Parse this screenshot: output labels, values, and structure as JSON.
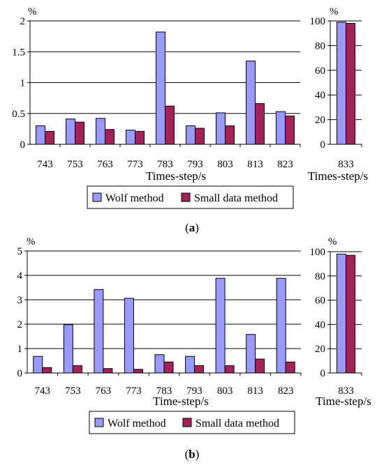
{
  "figure": {
    "captions": [
      "(a)",
      "(b)"
    ]
  },
  "legend": {
    "entries": [
      "Wolf method",
      "Small data method"
    ]
  },
  "colors": {
    "wolf_fill": "#9a99ff",
    "small_fill": "#a3225a",
    "bar_stroke": "#000000",
    "grid": "#000000"
  },
  "chart_data": [
    {
      "type": "bar",
      "panel": "a-main",
      "unit_label": "%",
      "xlabel": "Times-step/s",
      "categories": [
        "743",
        "753",
        "763",
        "773",
        "783",
        "793",
        "803",
        "813",
        "823"
      ],
      "ylim": [
        0,
        2
      ],
      "yticks": [
        "0",
        "0.5",
        "1",
        "1.5",
        "2"
      ],
      "grid": true,
      "series": [
        {
          "name": "Wolf method",
          "values": [
            0.3,
            0.41,
            0.42,
            0.23,
            1.82,
            0.3,
            0.51,
            1.35,
            0.53
          ]
        },
        {
          "name": "Small data method",
          "values": [
            0.21,
            0.36,
            0.24,
            0.21,
            0.62,
            0.26,
            0.3,
            0.66,
            0.46
          ]
        }
      ]
    },
    {
      "type": "bar",
      "panel": "a-inset",
      "unit_label": "%",
      "xlabel": "Times-step/s",
      "categories": [
        "833"
      ],
      "ylim": [
        0,
        100
      ],
      "yticks": [
        "0",
        "20",
        "40",
        "60",
        "80",
        "100"
      ],
      "grid": true,
      "series": [
        {
          "name": "Wolf method",
          "values": [
            99
          ]
        },
        {
          "name": "Small data method",
          "values": [
            98
          ]
        }
      ]
    },
    {
      "type": "bar",
      "panel": "b-main",
      "unit_label": "%",
      "xlabel": "Time-step/s",
      "categories": [
        "743",
        "753",
        "763",
        "773",
        "783",
        "793",
        "803",
        "813",
        "823"
      ],
      "ylim": [
        0,
        5
      ],
      "yticks": [
        "0",
        "1",
        "2",
        "3",
        "4",
        "5"
      ],
      "grid": true,
      "series": [
        {
          "name": "Wolf method",
          "values": [
            0.68,
            1.98,
            3.42,
            3.06,
            0.75,
            0.68,
            3.88,
            1.58,
            3.88
          ]
        },
        {
          "name": "Small data method",
          "values": [
            0.22,
            0.3,
            0.18,
            0.15,
            0.45,
            0.3,
            0.3,
            0.57,
            0.45
          ]
        }
      ]
    },
    {
      "type": "bar",
      "panel": "b-inset",
      "unit_label": "%",
      "xlabel": "Time-step/s",
      "categories": [
        "833"
      ],
      "ylim": [
        0,
        100
      ],
      "yticks": [
        "0",
        "20",
        "40",
        "60",
        "80",
        "100"
      ],
      "grid": true,
      "series": [
        {
          "name": "Wolf method",
          "values": [
            98
          ]
        },
        {
          "name": "Small data method",
          "values": [
            97
          ]
        }
      ]
    }
  ]
}
